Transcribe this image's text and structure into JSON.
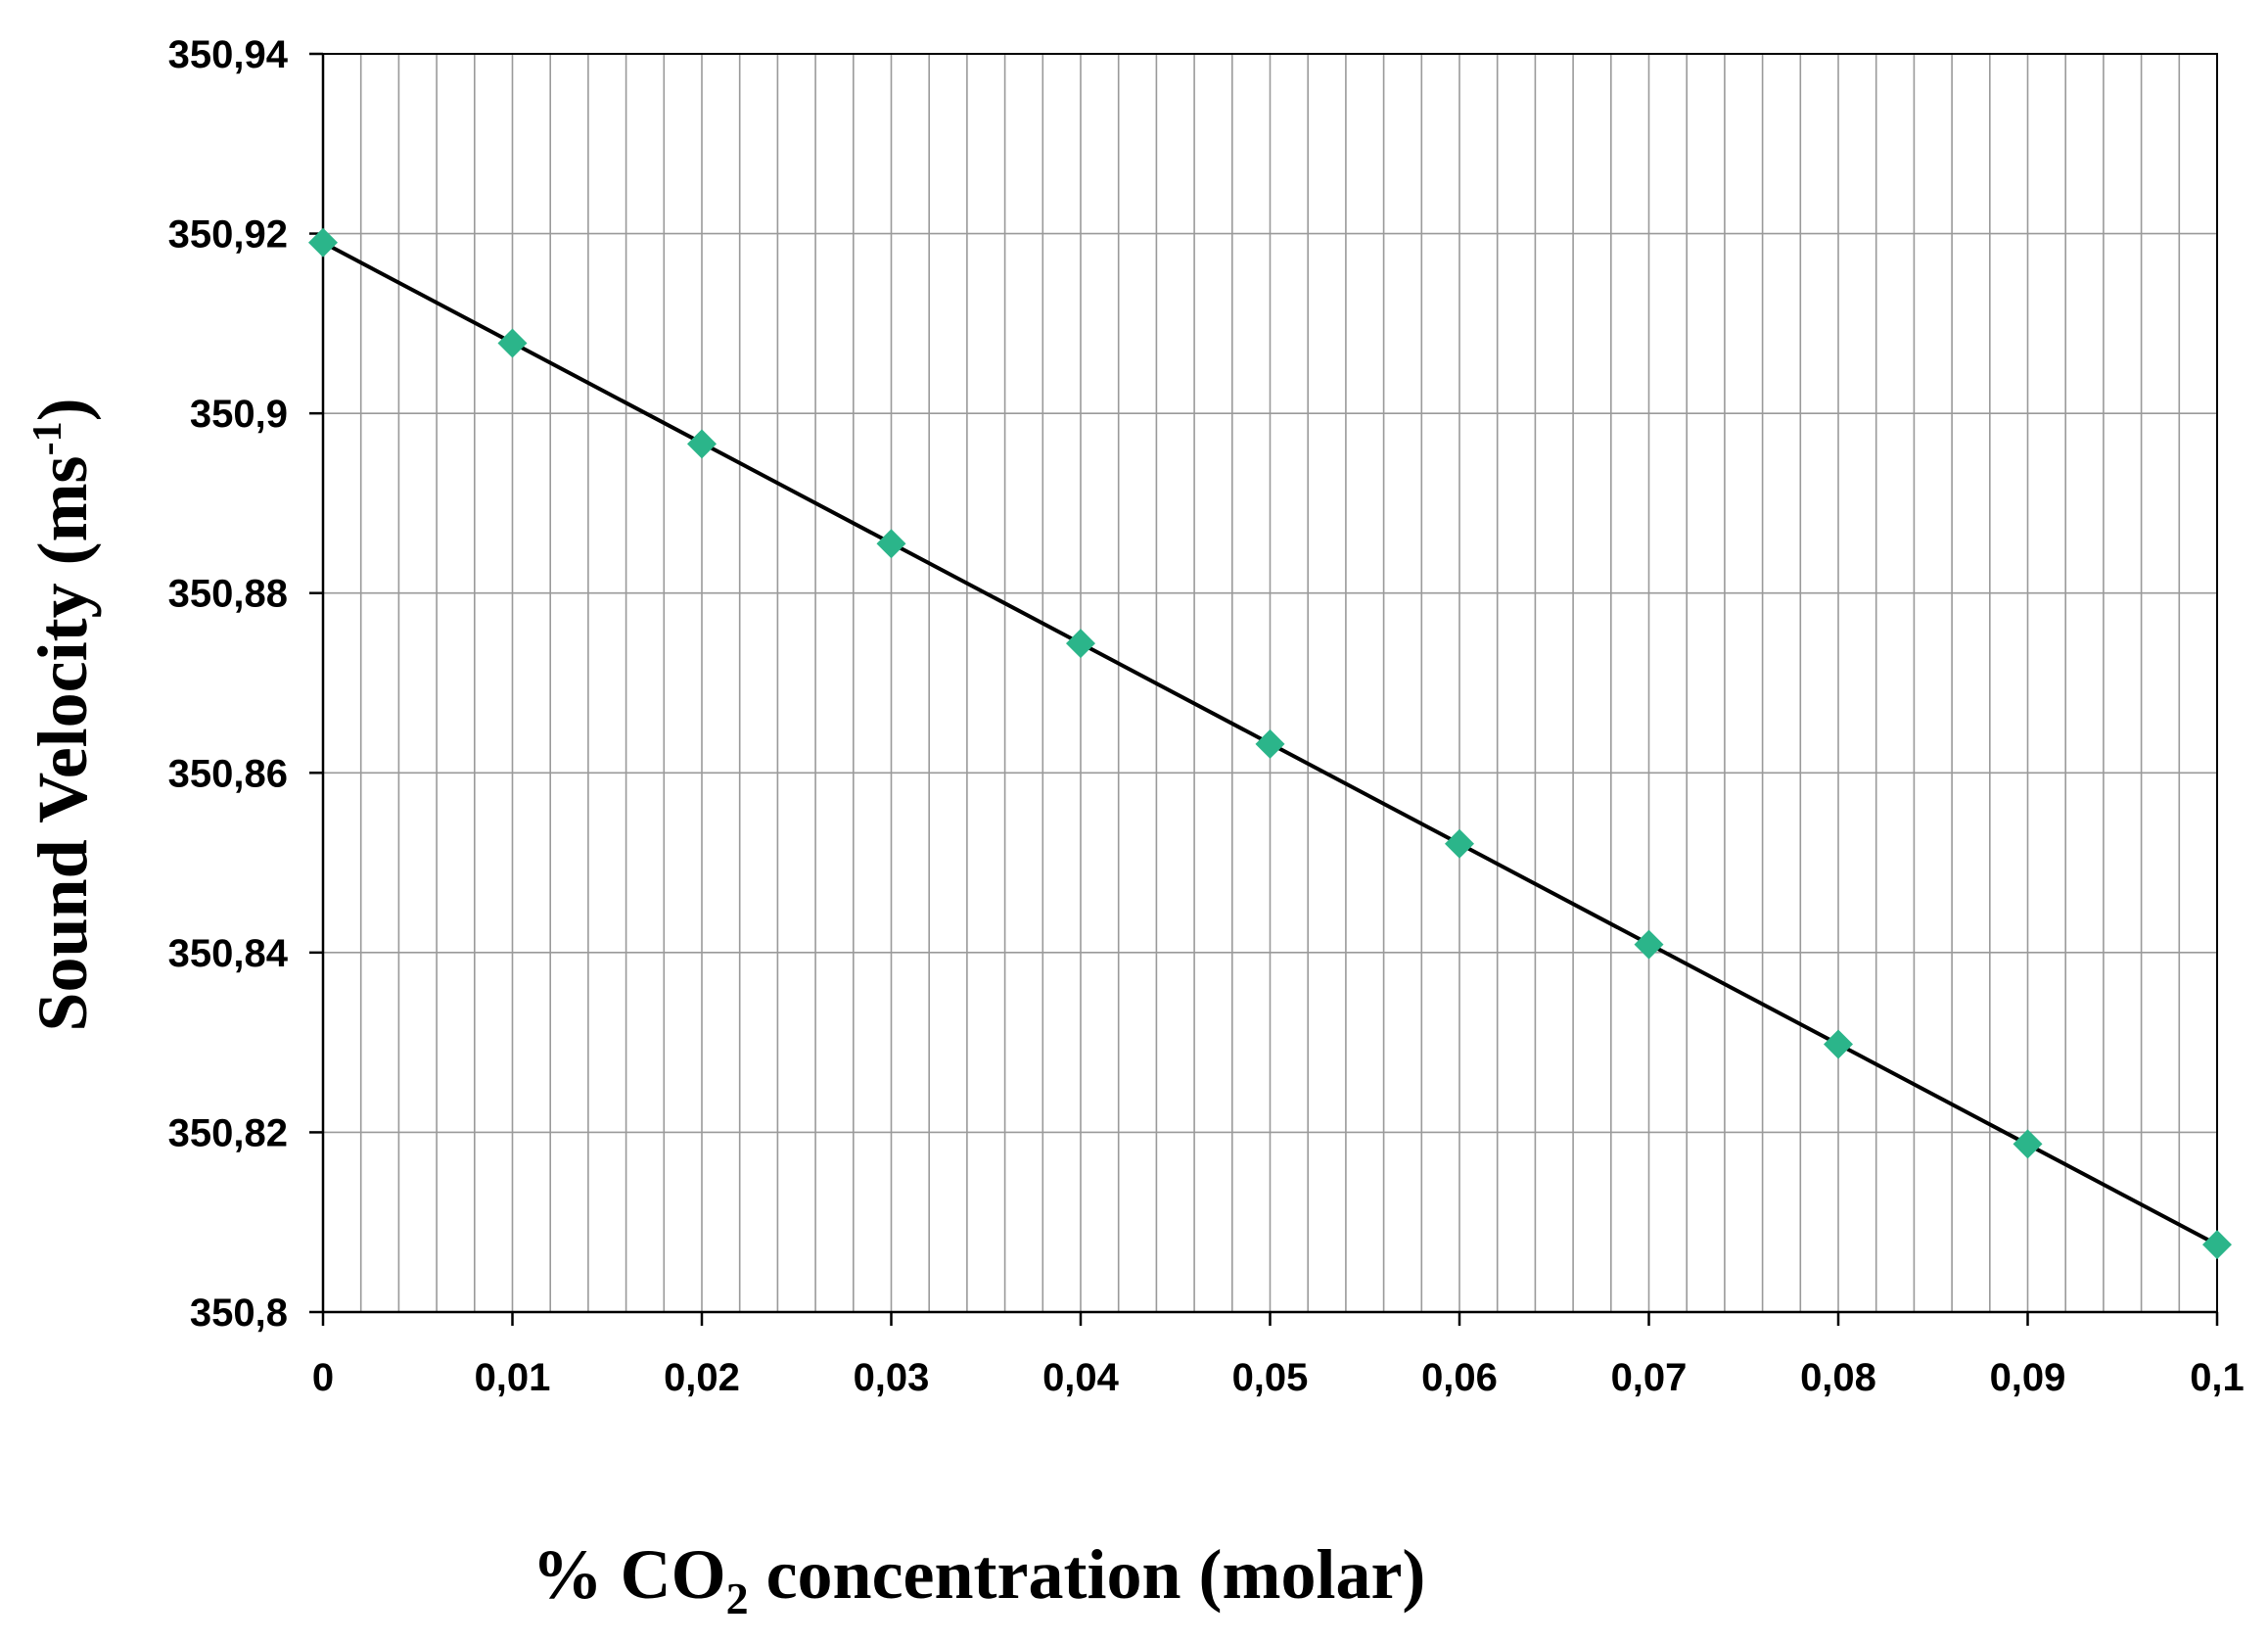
{
  "chart_data": {
    "type": "scatter",
    "xlabel": {
      "pre": "% CO",
      "sub": "2",
      "post": " concentration (molar)"
    },
    "ylabel": {
      "pre": "Sound Velocity (ms",
      "sup": "-1",
      "post": ")"
    },
    "xlim": [
      0,
      0.1
    ],
    "ylim": [
      350.8,
      350.94
    ],
    "x_ticks": [
      "0",
      "0,01",
      "0,02",
      "0,03",
      "0,04",
      "0,05",
      "0,06",
      "0,07",
      "0,08",
      "0,09",
      "0,1"
    ],
    "y_ticks": [
      "350,8",
      "350,82",
      "350,84",
      "350,86",
      "350,88",
      "350,9",
      "350,92",
      "350,94"
    ],
    "grid": true,
    "x_minor_grid_step": 0.002,
    "y_major_grid_step": 0.02,
    "series": [
      {
        "marker": "diamond",
        "color": "#2bb58a",
        "x": [
          0,
          0.01,
          0.02,
          0.03,
          0.04,
          0.05,
          0.06,
          0.07,
          0.08,
          0.09,
          0.1
        ],
        "y": [
          350.919,
          350.9078,
          350.8966,
          350.8855,
          350.8744,
          350.8632,
          350.8521,
          350.8409,
          350.8298,
          350.8187,
          350.8075
        ]
      }
    ],
    "fit_line": {
      "color": "#000000",
      "x": [
        0,
        0.1
      ],
      "y": [
        350.919,
        350.8075
      ]
    }
  }
}
